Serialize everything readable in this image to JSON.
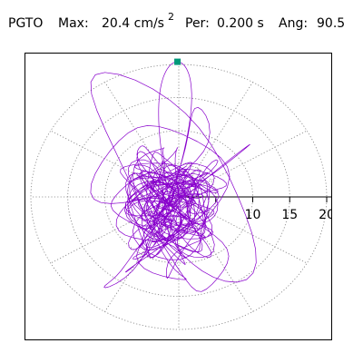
{
  "header": {
    "station": "PGTO",
    "max_label": "Max:",
    "max_value": "20.4 cm/s",
    "max_unit_exponent": "2",
    "period_label": "Per:",
    "period_value": "0.200 s",
    "angle_label": "Ang:",
    "angle_value": "90.5"
  },
  "chart_data": {
    "type": "polar-particle-motion",
    "max_amplitude": 20.4,
    "max_angle_deg": 90.5,
    "radial_range": [
      0,
      21
    ],
    "radial_ticks": [
      5,
      10,
      15,
      20
    ],
    "radial_tick_labels": [
      "",
      "10",
      "15",
      "20"
    ],
    "angular_grid_step_deg": 30,
    "grid": true,
    "trace_color": "#8800cc",
    "marker_color": "#00997a",
    "grid_color": "#808080"
  }
}
